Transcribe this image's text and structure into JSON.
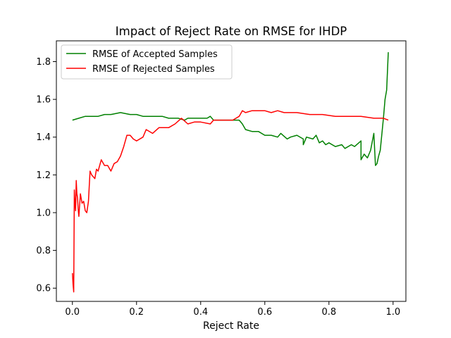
{
  "chart_data": {
    "type": "line",
    "title": "Impact of Reject Rate on RMSE for IHDP",
    "xlabel": "Reject Rate",
    "ylabel": "",
    "xlim": [
      -0.05,
      1.04
    ],
    "ylim": [
      0.53,
      1.91
    ],
    "xticks": [
      0.0,
      0.2,
      0.4,
      0.6,
      0.8,
      1.0
    ],
    "xtick_labels": [
      "0.0",
      "0.2",
      "0.4",
      "0.6",
      "0.8",
      "1.0"
    ],
    "yticks": [
      0.6,
      0.8,
      1.0,
      1.2,
      1.4,
      1.6,
      1.8
    ],
    "ytick_labels": [
      "0.6",
      "0.8",
      "1.0",
      "1.2",
      "1.4",
      "1.6",
      "1.8"
    ],
    "grid": false,
    "legend_position": "upper-left",
    "series": [
      {
        "name": "RMSE of Accepted Samples",
        "color": "#008000",
        "x": [
          0.0,
          0.02,
          0.04,
          0.05,
          0.08,
          0.1,
          0.12,
          0.15,
          0.18,
          0.2,
          0.22,
          0.25,
          0.28,
          0.3,
          0.33,
          0.35,
          0.36,
          0.38,
          0.4,
          0.42,
          0.43,
          0.44,
          0.46,
          0.5,
          0.52,
          0.53,
          0.54,
          0.56,
          0.58,
          0.6,
          0.62,
          0.64,
          0.65,
          0.67,
          0.68,
          0.7,
          0.72,
          0.72,
          0.73,
          0.75,
          0.76,
          0.77,
          0.78,
          0.79,
          0.8,
          0.82,
          0.84,
          0.85,
          0.87,
          0.88,
          0.9,
          0.9,
          0.91,
          0.92,
          0.93,
          0.94,
          0.945,
          0.95,
          0.955,
          0.96,
          0.97,
          0.975,
          0.98,
          0.985
        ],
        "y": [
          1.49,
          1.5,
          1.51,
          1.51,
          1.51,
          1.52,
          1.52,
          1.53,
          1.52,
          1.52,
          1.51,
          1.51,
          1.51,
          1.5,
          1.5,
          1.49,
          1.5,
          1.5,
          1.5,
          1.5,
          1.51,
          1.49,
          1.49,
          1.49,
          1.49,
          1.47,
          1.44,
          1.43,
          1.43,
          1.41,
          1.41,
          1.4,
          1.42,
          1.39,
          1.4,
          1.41,
          1.39,
          1.36,
          1.4,
          1.39,
          1.41,
          1.37,
          1.38,
          1.36,
          1.37,
          1.35,
          1.36,
          1.34,
          1.36,
          1.35,
          1.38,
          1.28,
          1.31,
          1.29,
          1.33,
          1.42,
          1.25,
          1.26,
          1.3,
          1.33,
          1.5,
          1.6,
          1.65,
          1.85
        ]
      },
      {
        "name": "RMSE of Rejected Samples",
        "color": "#ff0000",
        "x": [
          0.0,
          0.002,
          0.004,
          0.006,
          0.008,
          0.01,
          0.012,
          0.014,
          0.016,
          0.018,
          0.02,
          0.025,
          0.03,
          0.035,
          0.04,
          0.045,
          0.05,
          0.055,
          0.06,
          0.065,
          0.07,
          0.075,
          0.08,
          0.09,
          0.1,
          0.11,
          0.12,
          0.13,
          0.14,
          0.15,
          0.16,
          0.17,
          0.18,
          0.19,
          0.2,
          0.22,
          0.23,
          0.25,
          0.27,
          0.3,
          0.32,
          0.34,
          0.36,
          0.38,
          0.4,
          0.43,
          0.44,
          0.46,
          0.48,
          0.5,
          0.52,
          0.53,
          0.54,
          0.56,
          0.6,
          0.62,
          0.64,
          0.66,
          0.7,
          0.74,
          0.78,
          0.82,
          0.86,
          0.9,
          0.94,
          0.97,
          0.985
        ],
        "y": [
          0.68,
          0.62,
          0.58,
          1.12,
          1.05,
          1.01,
          1.17,
          1.1,
          1.08,
          1.02,
          0.98,
          1.1,
          1.05,
          1.06,
          1.01,
          1.0,
          1.06,
          1.22,
          1.2,
          1.19,
          1.18,
          1.23,
          1.22,
          1.28,
          1.25,
          1.25,
          1.22,
          1.26,
          1.27,
          1.3,
          1.35,
          1.41,
          1.41,
          1.39,
          1.38,
          1.4,
          1.44,
          1.42,
          1.45,
          1.45,
          1.47,
          1.5,
          1.47,
          1.48,
          1.48,
          1.47,
          1.49,
          1.49,
          1.49,
          1.49,
          1.51,
          1.54,
          1.53,
          1.54,
          1.54,
          1.53,
          1.54,
          1.53,
          1.53,
          1.52,
          1.52,
          1.51,
          1.51,
          1.51,
          1.5,
          1.5,
          1.49
        ]
      }
    ]
  }
}
